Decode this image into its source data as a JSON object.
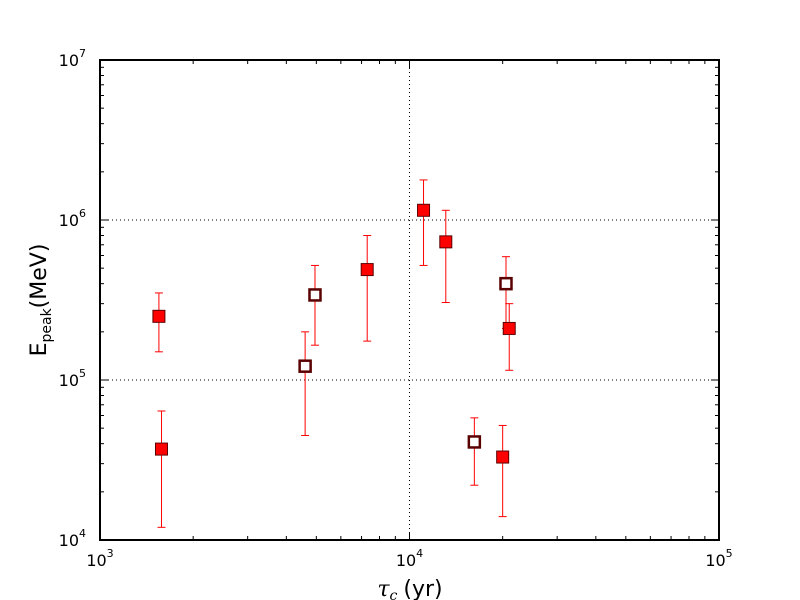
{
  "chart_data": {
    "type": "scatter",
    "title": "",
    "xlabel": {
      "symbol": "τ",
      "subscript": "c",
      "unit": "(yr)"
    },
    "ylabel": {
      "main": "E",
      "subscript": "peak",
      "unit": "(MeV)"
    },
    "x_scale": "log",
    "y_scale": "log",
    "xlim": [
      1000,
      100000
    ],
    "ylim": [
      10000,
      10000000
    ],
    "x_ticks": [
      {
        "value": 1000,
        "base": "10",
        "exp": "3"
      },
      {
        "value": 10000,
        "base": "10",
        "exp": "4"
      },
      {
        "value": 100000,
        "base": "10",
        "exp": "5"
      }
    ],
    "y_ticks": [
      {
        "value": 10000,
        "base": "10",
        "exp": "4"
      },
      {
        "value": 100000,
        "base": "10",
        "exp": "5"
      },
      {
        "value": 1000000,
        "base": "10",
        "exp": "6"
      },
      {
        "value": 10000000,
        "base": "10",
        "exp": "7"
      }
    ],
    "grid": "dotted",
    "marker_color": "#ff0000",
    "marker_edge_color": "#5a0000",
    "error_color": "#ff0000",
    "hollow_fill": "#ffffff",
    "series": [
      {
        "marker": "filled-square",
        "points": [
          {
            "x": 1550,
            "y": 250000,
            "ylo": 150000,
            "yhi": 350000
          },
          {
            "x": 1580,
            "y": 37000,
            "ylo": 12000,
            "yhi": 64000
          },
          {
            "x": 7300,
            "y": 490000,
            "ylo": 175000,
            "yhi": 800000
          },
          {
            "x": 11100,
            "y": 1150000,
            "ylo": 520000,
            "yhi": 1780000
          },
          {
            "x": 13100,
            "y": 730000,
            "ylo": 305000,
            "yhi": 1150000
          },
          {
            "x": 20000,
            "y": 33000,
            "ylo": 14000,
            "yhi": 52000
          },
          {
            "x": 21000,
            "y": 210000,
            "ylo": 115000,
            "yhi": 300000
          }
        ]
      },
      {
        "marker": "hollow-square",
        "points": [
          {
            "x": 4600,
            "y": 122000,
            "ylo": 45000,
            "yhi": 200000
          },
          {
            "x": 4950,
            "y": 340000,
            "ylo": 165000,
            "yhi": 520000
          },
          {
            "x": 16200,
            "y": 41000,
            "ylo": 22000,
            "yhi": 58000
          },
          {
            "x": 20500,
            "y": 400000,
            "ylo": 210000,
            "yhi": 590000
          }
        ]
      }
    ]
  }
}
